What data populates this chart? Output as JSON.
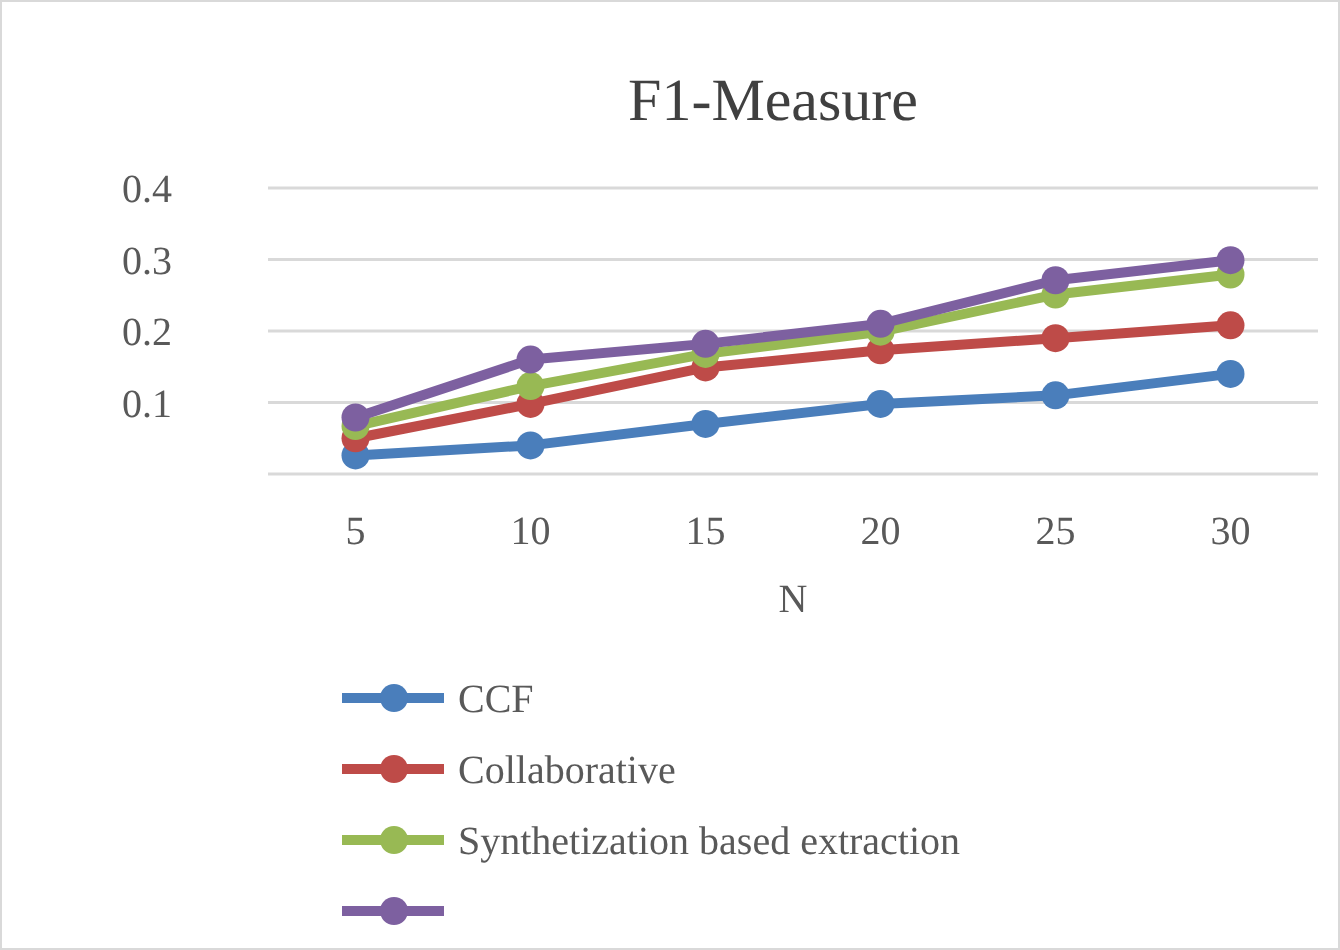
{
  "chart_data": {
    "type": "line",
    "title": "F1-Measure",
    "xlabel": "N",
    "categories": [
      "5",
      "10",
      "15",
      "20",
      "25",
      "30"
    ],
    "series": [
      {
        "name": "CCF",
        "color": "#4a7ebb",
        "values": [
          0.026,
          0.04,
          0.07,
          0.098,
          0.11,
          0.14
        ]
      },
      {
        "name": "Collaborative",
        "color": "#be4b48",
        "values": [
          0.05,
          0.098,
          0.149,
          0.173,
          0.19,
          0.208
        ]
      },
      {
        "name": "Synthetization based extraction",
        "color": "#98b954",
        "values": [
          0.067,
          0.123,
          0.168,
          0.199,
          0.251,
          0.279
        ]
      },
      {
        "color": "#7d60a0",
        "values": [
          0.079,
          0.16,
          0.182,
          0.21,
          0.271,
          0.299
        ]
      }
    ],
    "ylim": [
      0,
      0.4
    ],
    "yticks": [
      {
        "value": 0,
        "label": null
      },
      0.1,
      0.2,
      0.3,
      0.4
    ],
    "grid": "y",
    "legend": "bottom",
    "marker": "circle",
    "line_style": "solid"
  }
}
